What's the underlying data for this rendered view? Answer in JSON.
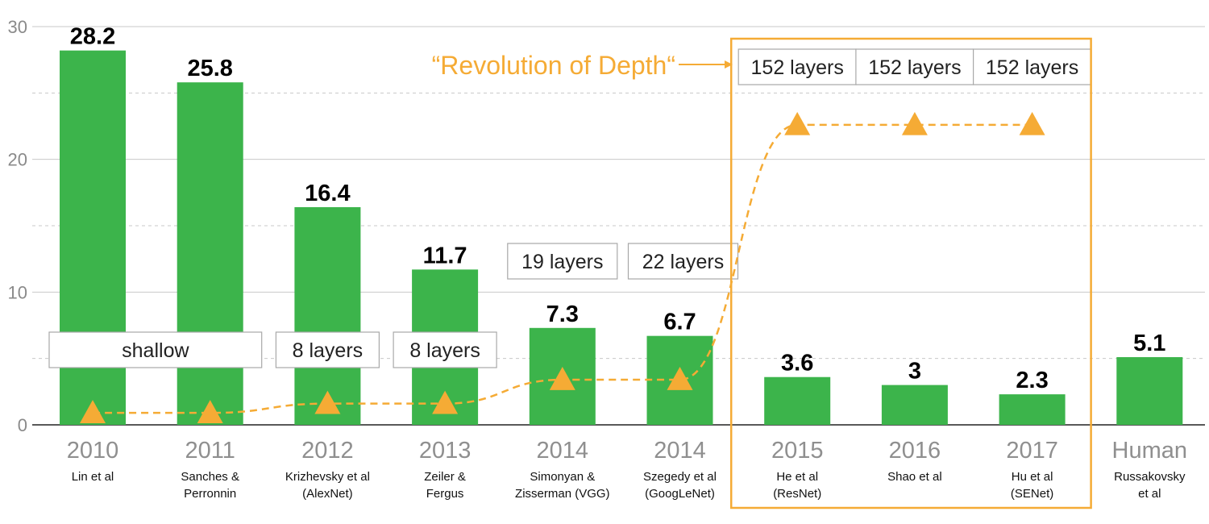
{
  "chart_data": {
    "type": "bar",
    "ylim": [
      0,
      30
    ],
    "yticks": [
      0,
      10,
      20,
      30
    ],
    "grid": true,
    "colors": {
      "bar": "#3cb44b",
      "accent": "#f5ab35",
      "grid": "#c8c8c8",
      "box": "#a8a8a8"
    },
    "categories": [
      {
        "year": "2010",
        "sub": [
          "Lin et al"
        ]
      },
      {
        "year": "2011",
        "sub": [
          "Sanches &",
          "Perronnin"
        ]
      },
      {
        "year": "2012",
        "sub": [
          "Krizhevsky et al",
          "(AlexNet)"
        ]
      },
      {
        "year": "2013",
        "sub": [
          "Zeiler &",
          "Fergus"
        ]
      },
      {
        "year": "2014",
        "sub": [
          "Simonyan &",
          "Zisserman (VGG)"
        ]
      },
      {
        "year": "2014",
        "sub": [
          "Szegedy et al",
          "(GoogLeNet)"
        ]
      },
      {
        "year": "2015",
        "sub": [
          "He et al",
          "(ResNet)"
        ]
      },
      {
        "year": "2016",
        "sub": [
          "Shao et al"
        ]
      },
      {
        "year": "2017",
        "sub": [
          "Hu et al",
          "(SENet)"
        ]
      },
      {
        "year": "Human",
        "sub": [
          "Russakovsky",
          "et al"
        ]
      }
    ],
    "values": [
      28.2,
      25.8,
      16.4,
      11.7,
      7.3,
      6.7,
      3.6,
      3,
      2.3,
      5.1
    ],
    "depth_line": {
      "style": "dashed",
      "marker": "triangle",
      "values": [
        0.9,
        0.9,
        1.6,
        1.6,
        3.4,
        3.4,
        22.6,
        22.6,
        22.6
      ]
    },
    "layer_labels": [
      {
        "text": "shallow",
        "categories": [
          0,
          1
        ]
      },
      {
        "text": "8 layers",
        "categories": [
          2
        ]
      },
      {
        "text": "8 layers",
        "categories": [
          3
        ]
      },
      {
        "text": "19 layers",
        "categories": [
          4
        ]
      },
      {
        "text": "22 layers",
        "categories": [
          5
        ]
      },
      {
        "text": "152 layers",
        "categories": [
          6
        ]
      },
      {
        "text": "152 layers",
        "categories": [
          7
        ]
      },
      {
        "text": "152 layers",
        "categories": [
          8
        ]
      }
    ],
    "annotation": {
      "text": "“Revolution of Depth“",
      "highlight_categories": [
        6,
        7,
        8
      ]
    }
  }
}
